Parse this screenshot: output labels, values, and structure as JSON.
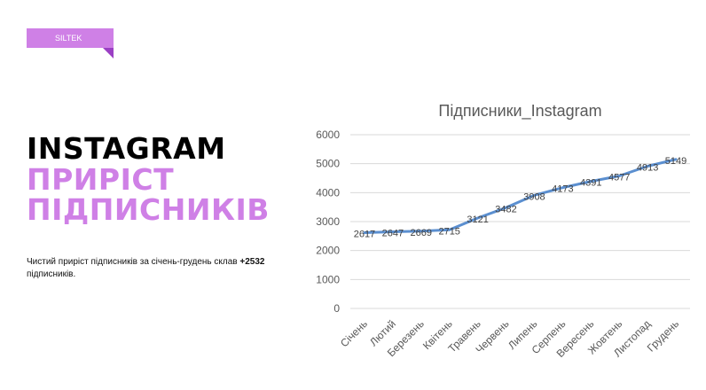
{
  "tag": "SILTEK",
  "heading": {
    "line1": "INSTAGRAM",
    "line2": "ПРИРІСТ",
    "line3": "ПІДПИСНИКІВ"
  },
  "description": {
    "text": "Чистий приріст підписників за січень-грудень склав ",
    "highlight": "+2532",
    "tail": " підписників."
  },
  "colors": {
    "accent": "#cf80e6",
    "line": "#5b8fd0"
  },
  "chart_data": {
    "type": "line",
    "title": "Підписники_Instagram",
    "categories": [
      "Січень",
      "Лютий",
      "Березень",
      "Квітень",
      "Травень",
      "Червень",
      "Липень",
      "Серпень",
      "Вересень",
      "Жовтень",
      "Листопад",
      "Грудень"
    ],
    "values": [
      2617,
      2647,
      2669,
      2715,
      3121,
      3482,
      3908,
      4173,
      4391,
      4577,
      4913,
      5149
    ],
    "ylim": [
      0,
      6000
    ],
    "yticks": [
      0,
      1000,
      2000,
      3000,
      4000,
      5000,
      6000
    ],
    "grid": true,
    "data_labels": true
  }
}
